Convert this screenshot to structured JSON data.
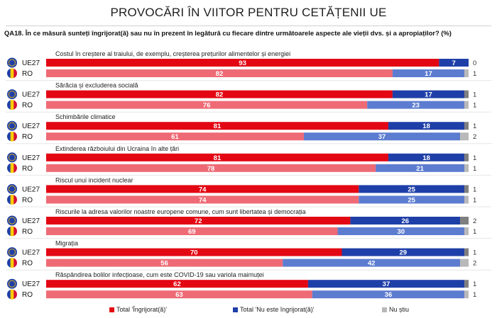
{
  "title": "PROVOCĂRI ÎN VIITOR PENTRU CETĂȚENII UE",
  "question": "QA18. În ce măsură sunteți îngrijorat(ă) sau nu în prezent în legătură cu fiecare dintre următoarele aspecte ale vieții dvs. și a apropiaților? (%)",
  "colors": {
    "eu_worried": "#e30613",
    "ro_worried": "#ee6a75",
    "eu_not": "#1f3fa8",
    "ro_not": "#5c7cd0",
    "eu_dk": "#7f7f7f",
    "ro_dk": "#b9b9b9",
    "flag_eu": "#1f3fa8"
  },
  "legend": [
    {
      "label": "Total 'Îngrijorat(ă)'",
      "color": "#e30613"
    },
    {
      "label": "Total 'Nu este îngrijorat(ă)'",
      "color": "#1f3fa8"
    },
    {
      "label": "Nu știu",
      "color": "#b9b9b9"
    }
  ],
  "chart_data": {
    "type": "bar",
    "stacked": true,
    "orientation": "horizontal",
    "row_labels": [
      "UE27",
      "RO"
    ],
    "groups": [
      {
        "label": "Costul în creștere al traiului, de exemplu, creșterea prețurilor alimentelor și energiei",
        "rows": [
          {
            "region": "UE27",
            "values": [
              93,
              7,
              0
            ]
          },
          {
            "region": "RO",
            "values": [
              82,
              17,
              1
            ]
          }
        ]
      },
      {
        "label": "Sărăcia și excluderea socială",
        "rows": [
          {
            "region": "UE27",
            "values": [
              82,
              17,
              1
            ]
          },
          {
            "region": "RO",
            "values": [
              76,
              23,
              1
            ]
          }
        ]
      },
      {
        "label": "Schimbările climatice",
        "rows": [
          {
            "region": "UE27",
            "values": [
              81,
              18,
              1
            ]
          },
          {
            "region": "RO",
            "values": [
              61,
              37,
              2
            ]
          }
        ]
      },
      {
        "label": "Extinderea războiului din Ucraina în alte țări",
        "rows": [
          {
            "region": "UE27",
            "values": [
              81,
              18,
              1
            ]
          },
          {
            "region": "RO",
            "values": [
              78,
              21,
              1
            ]
          }
        ]
      },
      {
        "label": "Riscul unui incident nuclear",
        "rows": [
          {
            "region": "UE27",
            "values": [
              74,
              25,
              1
            ]
          },
          {
            "region": "RO",
            "values": [
              74,
              25,
              1
            ]
          }
        ]
      },
      {
        "label": "Riscurile la adresa valorilor noastre europene comune, cum sunt libertatea și democrația",
        "rows": [
          {
            "region": "UE27",
            "values": [
              72,
              26,
              2
            ]
          },
          {
            "region": "RO",
            "values": [
              69,
              30,
              1
            ]
          }
        ]
      },
      {
        "label": "Migrația",
        "rows": [
          {
            "region": "UE27",
            "values": [
              70,
              29,
              1
            ]
          },
          {
            "region": "RO",
            "values": [
              56,
              42,
              2
            ]
          }
        ]
      },
      {
        "label": "Răspândirea bolilor infecțioase, cum este COVID-19 sau variola maimuței",
        "rows": [
          {
            "region": "UE27",
            "values": [
              62,
              37,
              1
            ]
          },
          {
            "region": "RO",
            "values": [
              63,
              36,
              1
            ]
          }
        ]
      }
    ],
    "series": [
      {
        "name": "Total 'Îngrijorat(ă)'"
      },
      {
        "name": "Total 'Nu este îngrijorat(ă)'"
      },
      {
        "name": "Nu știu"
      }
    ],
    "xlim": [
      0,
      100
    ]
  }
}
